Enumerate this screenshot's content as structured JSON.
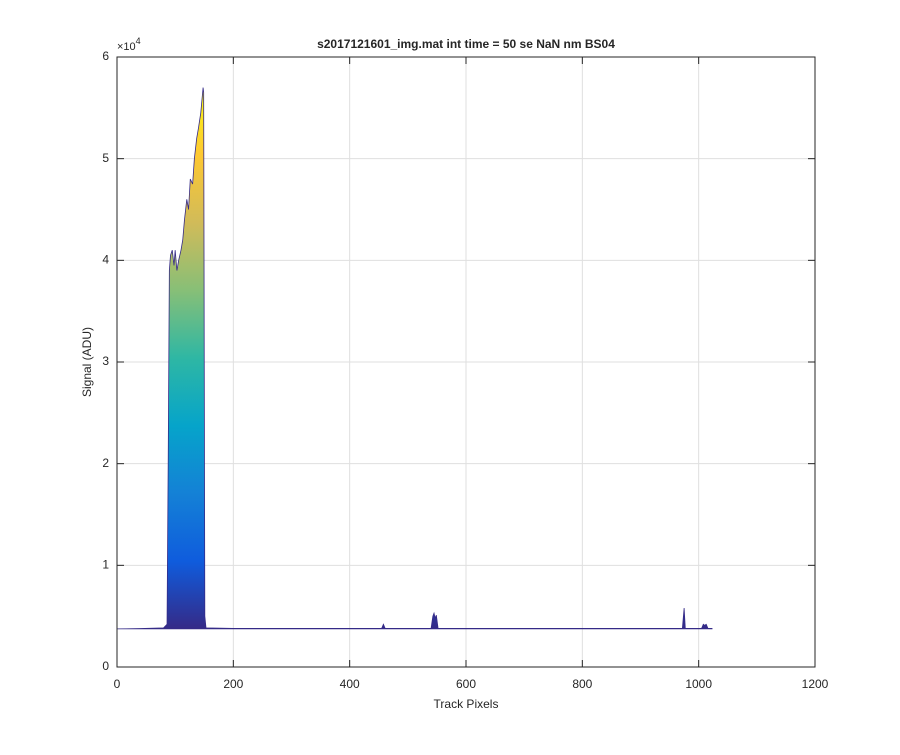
{
  "chart_data": {
    "type": "area",
    "title": "s2017121601_img.mat int time = 50 se  NaN nm BS04",
    "x_label": "Track Pixels",
    "y_label": "Signal (ADU)",
    "y_multiplier": {
      "base": "×10",
      "exponent": "4"
    },
    "xlim": [
      0,
      1200
    ],
    "xticks": [
      0,
      200,
      400,
      600,
      800,
      1000,
      1200
    ],
    "ylim": [
      0,
      60000
    ],
    "yticks": [
      {
        "value": 0,
        "label": "0"
      },
      {
        "value": 10000,
        "label": "1"
      },
      {
        "value": 20000,
        "label": "2"
      },
      {
        "value": 30000,
        "label": "3"
      },
      {
        "value": 40000,
        "label": "4"
      },
      {
        "value": 50000,
        "label": "5"
      },
      {
        "value": 60000,
        "label": "6"
      }
    ],
    "grid": true,
    "colormap": [
      "#352a87",
      "#0f5cdd",
      "#1481d6",
      "#06a4ca",
      "#2eb7a4",
      "#87bf77",
      "#d1bb59",
      "#fec832",
      "#f9fb0e"
    ],
    "series": [
      {
        "color": "#352a87",
        "x": [
          0,
          40,
          80,
          86,
          88,
          90,
          92,
          95,
          98,
          100,
          103,
          106,
          110,
          113,
          116,
          120,
          123,
          126,
          130,
          133,
          137,
          140,
          144,
          148,
          149,
          150,
          151,
          153,
          200,
          300,
          455,
          458,
          461,
          540,
          543,
          545,
          547,
          549,
          552,
          700,
          900,
          972,
          975,
          977,
          1005,
          1008,
          1010,
          1013,
          1016,
          1023
        ],
        "values": [
          3750,
          3780,
          3850,
          4200,
          20000,
          39000,
          40500,
          41000,
          39500,
          41000,
          39000,
          40000,
          41000,
          42000,
          44000,
          46000,
          45000,
          48000,
          47500,
          50000,
          52000,
          53000,
          54500,
          57000,
          56500,
          30000,
          5000,
          3850,
          3800,
          3800,
          3800,
          4200,
          3800,
          3800,
          5000,
          5300,
          4800,
          5100,
          3800,
          3800,
          3800,
          3800,
          5800,
          3800,
          3800,
          4200,
          4100,
          4200,
          3800,
          3800
        ]
      }
    ]
  }
}
